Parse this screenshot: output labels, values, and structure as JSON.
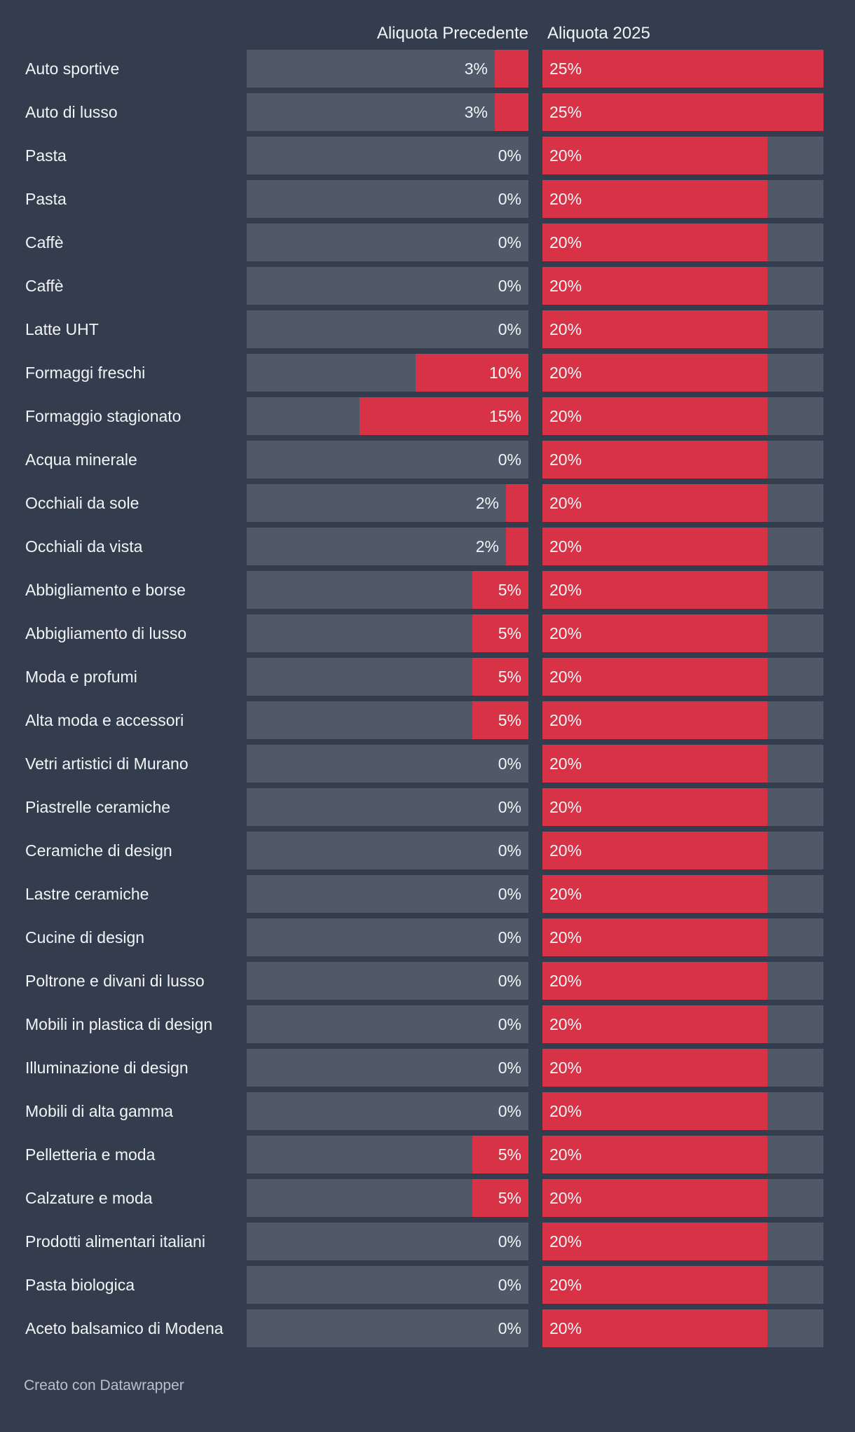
{
  "header": {
    "col_prev": "Aliquota Precedente",
    "col_2025": "Aliquota 2025"
  },
  "chart_data": {
    "type": "bar",
    "categories": [
      "Auto sportive",
      "Auto di lusso",
      "Pasta",
      "Pasta",
      "Caffè",
      "Caffè",
      "Latte UHT",
      "Formaggi freschi",
      "Formaggio stagionato",
      "Acqua minerale",
      "Occhiali da sole",
      "Occhiali da vista",
      "Abbigliamento e borse",
      "Abbigliamento di lusso",
      "Moda e profumi",
      "Alta moda e accessori",
      "Vetri artistici di Murano",
      "Piastrelle ceramiche",
      "Ceramiche di design",
      "Lastre ceramiche",
      "Cucine di design",
      "Poltrone e divani di lusso",
      "Mobili in plastica di design",
      "Illuminazione di design",
      "Mobili di alta gamma",
      "Pelletteria e moda",
      "Calzature e moda",
      "Prodotti alimentari italiani",
      "Pasta biologica",
      "Aceto balsamico di Modena"
    ],
    "series": [
      {
        "name": "Aliquota Precedente",
        "values": [
          3,
          3,
          0,
          0,
          0,
          0,
          0,
          10,
          15,
          0,
          2,
          2,
          5,
          5,
          5,
          5,
          0,
          0,
          0,
          0,
          0,
          0,
          0,
          0,
          0,
          5,
          5,
          0,
          0,
          0
        ],
        "labels": [
          "3%",
          "3%",
          "0%",
          "0%",
          "0%",
          "0%",
          "0%",
          "10%",
          "15%",
          "0%",
          "2%",
          "2%",
          "5%",
          "5%",
          "5%",
          "5%",
          "0%",
          "0%",
          "0%",
          "0%",
          "0%",
          "0%",
          "0%",
          "0%",
          "0%",
          "5%",
          "5%",
          "0%",
          "0%",
          "0%"
        ]
      },
      {
        "name": "Aliquota 2025",
        "values": [
          25,
          25,
          20,
          20,
          20,
          20,
          20,
          20,
          20,
          20,
          20,
          20,
          20,
          20,
          20,
          20,
          20,
          20,
          20,
          20,
          20,
          20,
          20,
          20,
          20,
          20,
          20,
          20,
          20,
          20
        ],
        "labels": [
          "25%",
          "25%",
          "20%",
          "20%",
          "20%",
          "20%",
          "20%",
          "20%",
          "20%",
          "20%",
          "20%",
          "20%",
          "20%",
          "20%",
          "20%",
          "20%",
          "20%",
          "20%",
          "20%",
          "20%",
          "20%",
          "20%",
          "20%",
          "20%",
          "20%",
          "20%",
          "20%",
          "20%",
          "20%",
          "20%"
        ]
      }
    ],
    "xlim": [
      0,
      25
    ],
    "title": "",
    "xlabel": "",
    "ylabel": ""
  },
  "colors": {
    "background": "#333d4d",
    "track": "#4f5968",
    "bar": "#d73245",
    "text": "#f2f4f7",
    "footer_text": "#b9c0cb"
  },
  "footer": {
    "credit": "Creato con Datawrapper"
  }
}
